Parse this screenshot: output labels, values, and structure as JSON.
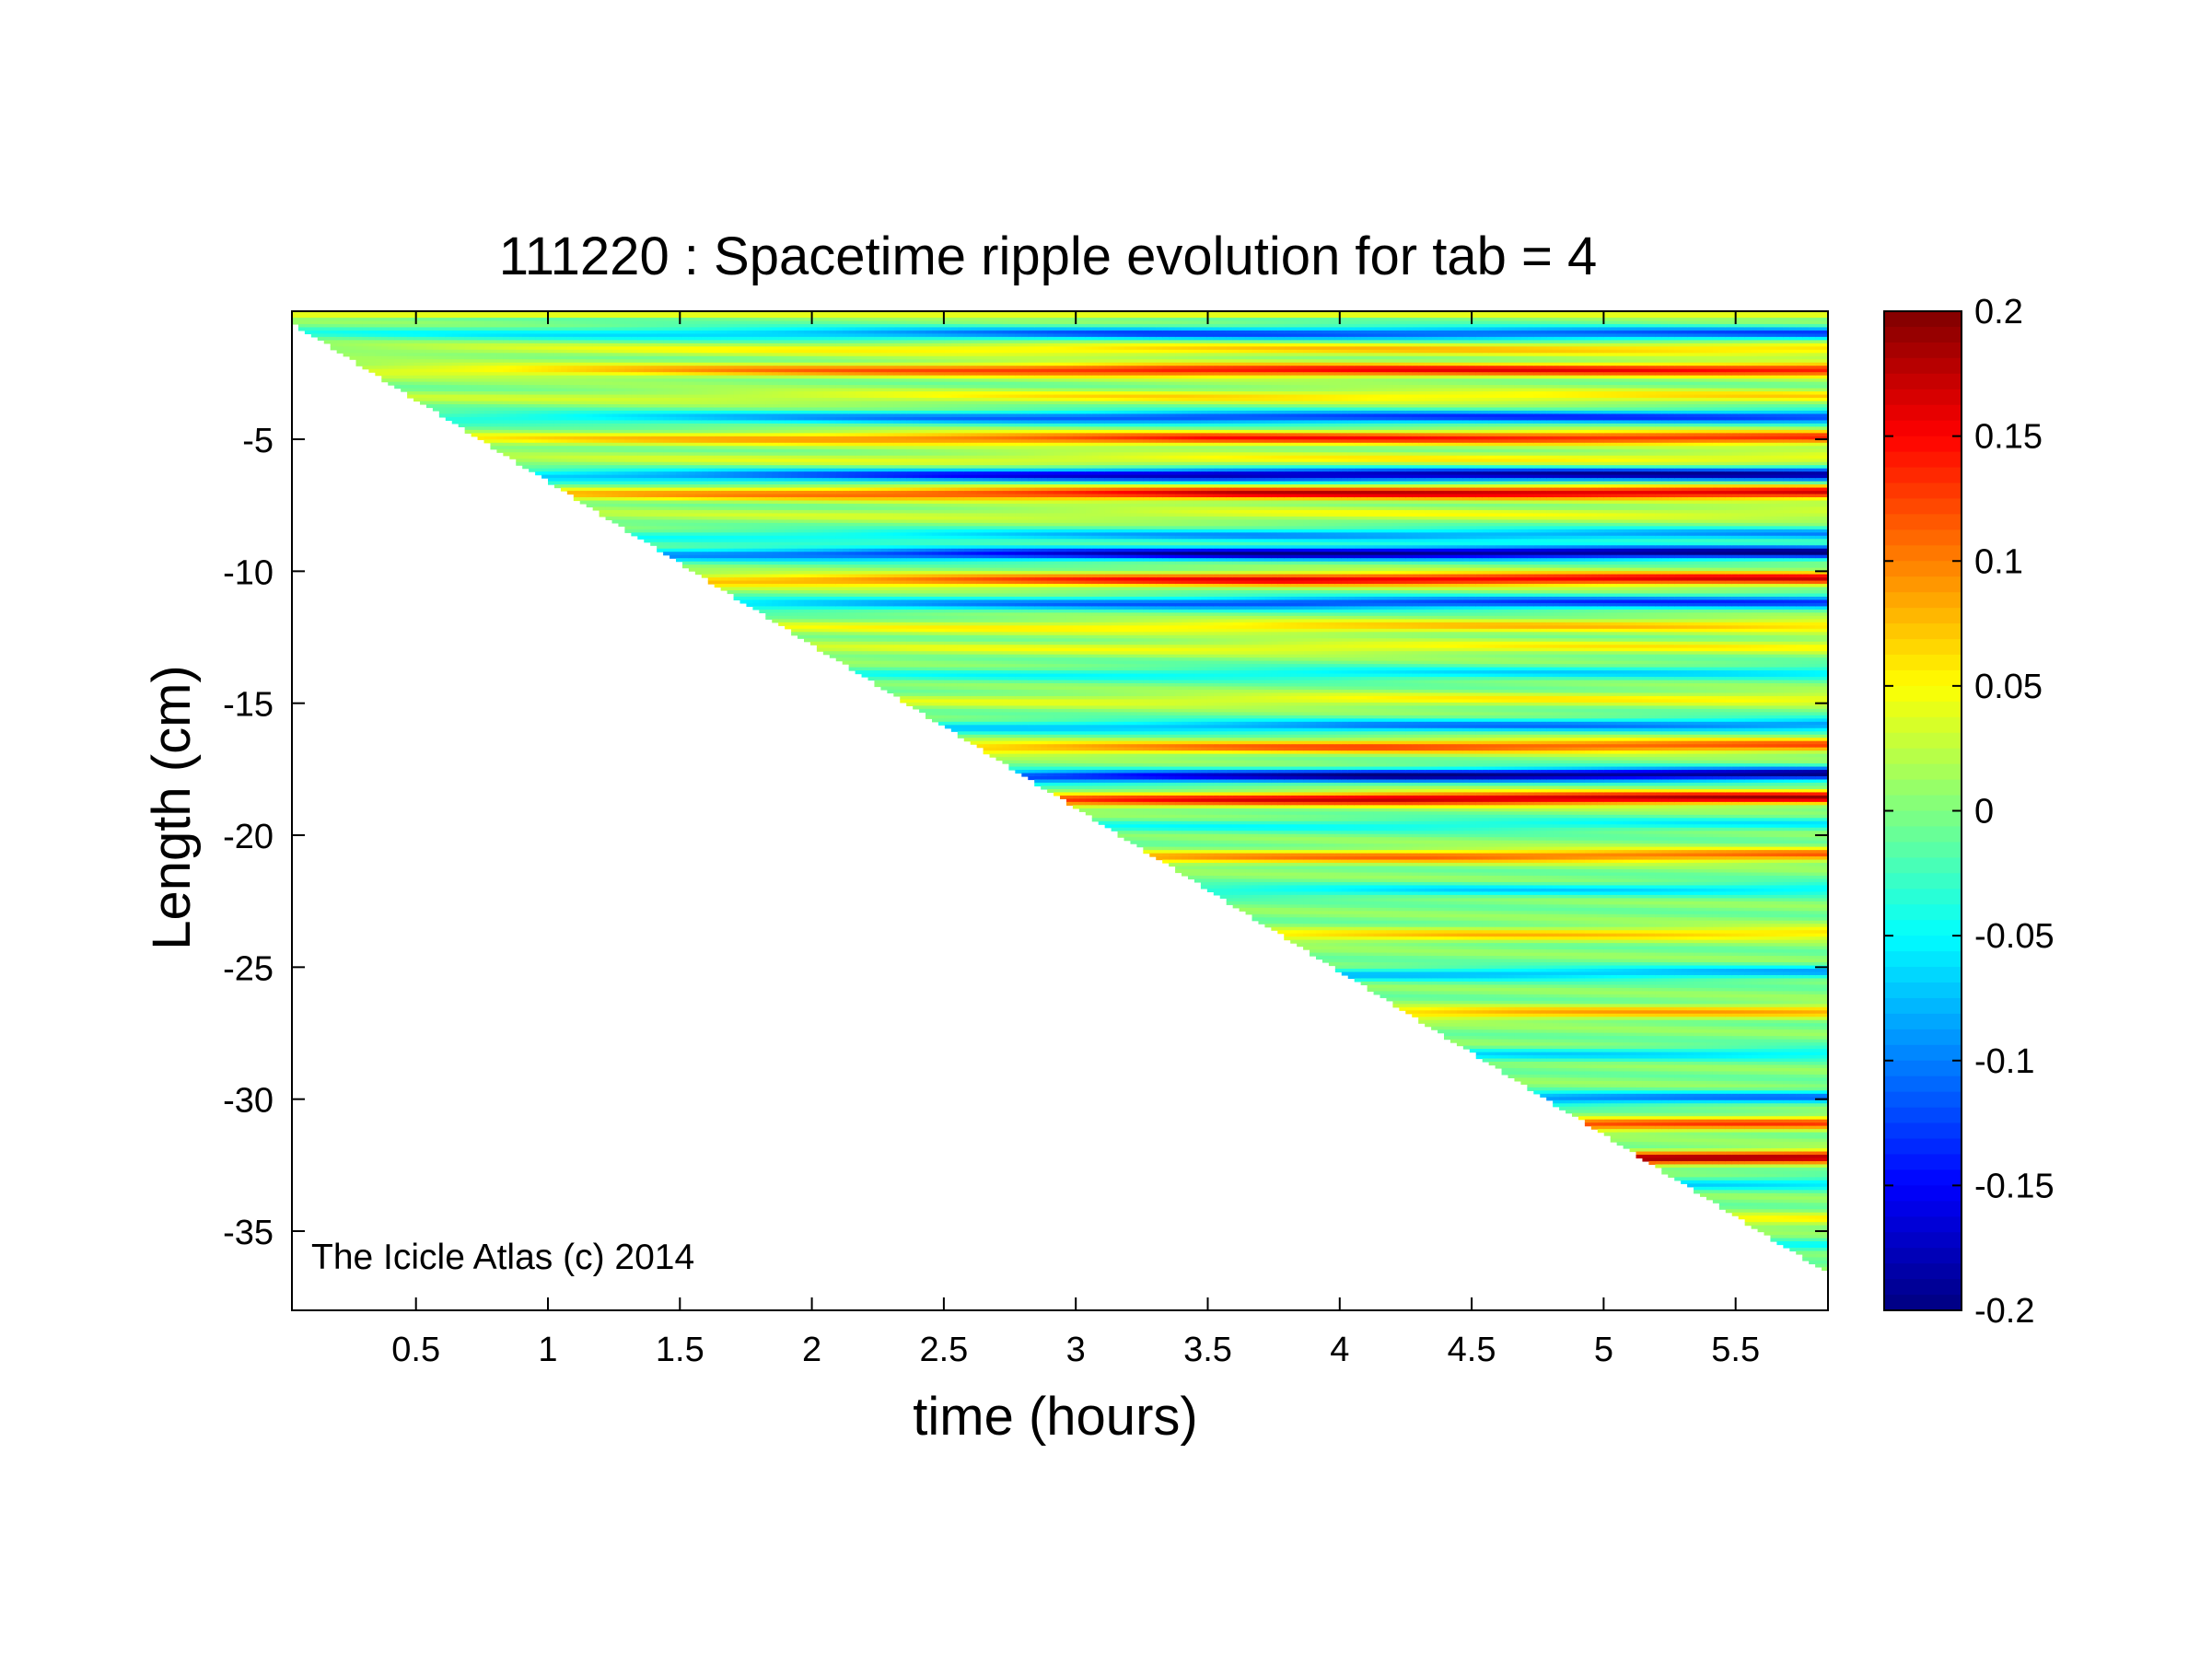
{
  "chart_data": {
    "type": "heatmap",
    "title": "111220 : Spacetime ripple evolution for tab = 4",
    "xlabel": "time (hours)",
    "ylabel": "Length (cm)",
    "annotation": "The Icicle Atlas (c) 2014",
    "xlim": [
      0.03,
      5.85
    ],
    "ylim": [
      -38.0,
      -0.15
    ],
    "xticks": [
      0.5,
      1,
      1.5,
      2,
      2.5,
      3,
      3.5,
      4,
      4.5,
      5,
      5.5
    ],
    "xtick_labels": [
      "0.5",
      "1",
      "1.5",
      "2",
      "2.5",
      "3",
      "3.5",
      "4",
      "4.5",
      "5",
      "5.5"
    ],
    "yticks": [
      -5,
      -10,
      -15,
      -20,
      -25,
      -30,
      -35
    ],
    "ytick_labels": [
      "-5",
      "-10",
      "-15",
      "-20",
      "-25",
      "-30",
      "-35"
    ],
    "colorbar": {
      "colormap": "jet",
      "clim": [
        -0.2,
        0.2
      ],
      "ticks": [
        0.2,
        0.15,
        0.1,
        0.05,
        0,
        -0.05,
        -0.1,
        -0.15,
        -0.2
      ],
      "tick_labels": [
        "0.2",
        "0.15",
        "0.1",
        "0.05",
        "0",
        "-0.05",
        "-0.1",
        "-0.15",
        "-0.2"
      ]
    },
    "data_domain": {
      "description_of_shape": "triangular",
      "top_length": -0.15,
      "front_length_at_start": -0.6,
      "front_length_at_end": -36.6,
      "start_time": 0.03,
      "end_time": 5.85
    },
    "ripple_bands": [
      {
        "length": -1.0,
        "amplitude": -0.12
      },
      {
        "length": -1.6,
        "amplitude": 0.07
      },
      {
        "length": -2.4,
        "amplitude": 0.15
      },
      {
        "length": -3.4,
        "amplitude": 0.06
      },
      {
        "length": -4.2,
        "amplitude": -0.13
      },
      {
        "length": -5.0,
        "amplitude": 0.14
      },
      {
        "length": -5.8,
        "amplitude": 0.05
      },
      {
        "length": -6.4,
        "amplitude": -0.19
      },
      {
        "length": -7.1,
        "amplitude": 0.17
      },
      {
        "length": -7.9,
        "amplitude": 0.04
      },
      {
        "length": -8.7,
        "amplitude": -0.09
      },
      {
        "length": -9.4,
        "amplitude": -0.2
      },
      {
        "length": -10.4,
        "amplitude": 0.16
      },
      {
        "length": -11.3,
        "amplitude": -0.13
      },
      {
        "length": -12.2,
        "amplitude": 0.07
      },
      {
        "length": -13.0,
        "amplitude": 0.05
      },
      {
        "length": -14.0,
        "amplitude": -0.06
      },
      {
        "length": -15.0,
        "amplitude": 0.05
      },
      {
        "length": -16.0,
        "amplitude": -0.1
      },
      {
        "length": -16.8,
        "amplitude": 0.12
      },
      {
        "length": -17.9,
        "amplitude": -0.2
      },
      {
        "length": -18.8,
        "amplitude": 0.18
      },
      {
        "length": -19.8,
        "amplitude": -0.05
      },
      {
        "length": -21.0,
        "amplitude": 0.11
      },
      {
        "length": -22.3,
        "amplitude": -0.06
      },
      {
        "length": -24.0,
        "amplitude": 0.07
      },
      {
        "length": -25.5,
        "amplitude": -0.08
      },
      {
        "length": -27.0,
        "amplitude": 0.08
      },
      {
        "length": -28.6,
        "amplitude": -0.06
      },
      {
        "length": -30.3,
        "amplitude": -0.1
      },
      {
        "length": -31.3,
        "amplitude": 0.12
      },
      {
        "length": -32.6,
        "amplitude": 0.18
      },
      {
        "length": -33.6,
        "amplitude": -0.06
      },
      {
        "length": -35.0,
        "amplitude": 0.05
      },
      {
        "length": -36.0,
        "amplitude": -0.04
      }
    ]
  }
}
